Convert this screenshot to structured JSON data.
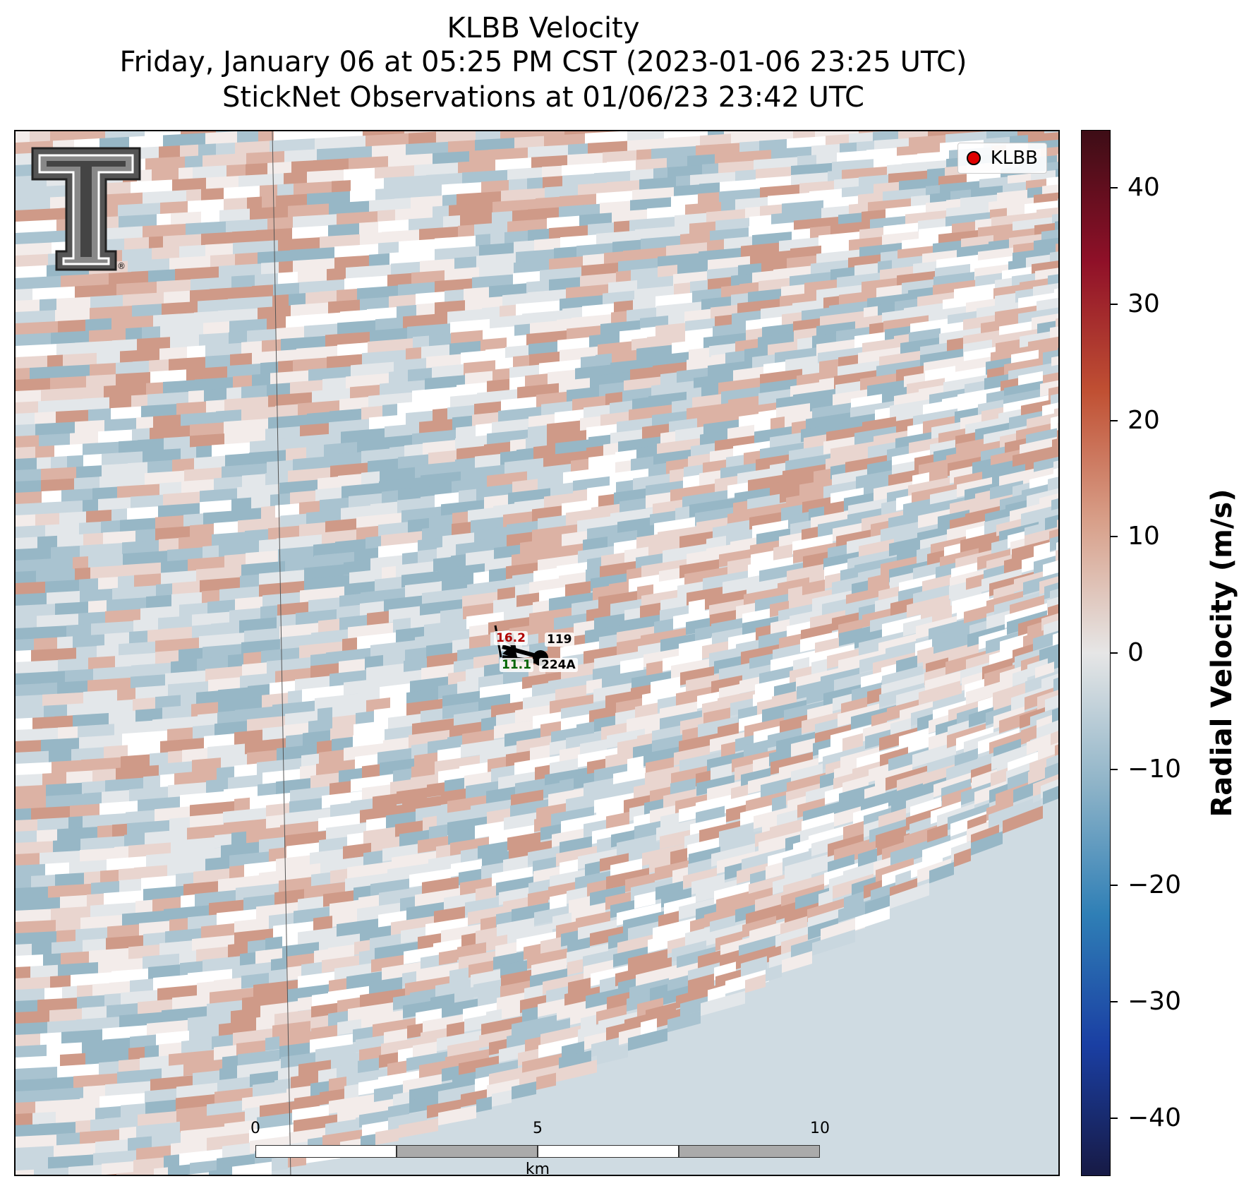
{
  "title": {
    "line1": "KLBB Velocity",
    "line2": "Friday, January 06 at 05:25 PM CST (2023-01-06 23:25 UTC)",
    "line3": "StickNet Observations at 01/06/23 23:42 UTC"
  },
  "legend": {
    "label": "KLBB",
    "marker_color": "#e00000"
  },
  "logo": {
    "name": "texas-tech-double-t-logo",
    "text": "®"
  },
  "scalebar": {
    "ticks": [
      "0",
      "5",
      "10"
    ],
    "unit": "km"
  },
  "colorbar": {
    "label": "Radial Velocity (m/s)",
    "min": -45,
    "max": 45,
    "ticks": [
      "40",
      "30",
      "20",
      "10",
      "0",
      "−10",
      "−20",
      "−30",
      "−40"
    ],
    "tick_values": [
      40,
      30,
      20,
      10,
      0,
      -10,
      -20,
      -30,
      -40
    ],
    "colors": [
      "#171a45",
      "#1a3fa3",
      "#2f7fb6",
      "#8fb4c8",
      "#e6e6e6",
      "#d8a08a",
      "#c05033",
      "#8f1028",
      "#3d0d16"
    ]
  },
  "stations": [
    {
      "id": "119",
      "value": "16.2",
      "value_color": "#b00000"
    },
    {
      "id": "224A",
      "value": "11.1",
      "value_color": "#006400"
    }
  ]
}
